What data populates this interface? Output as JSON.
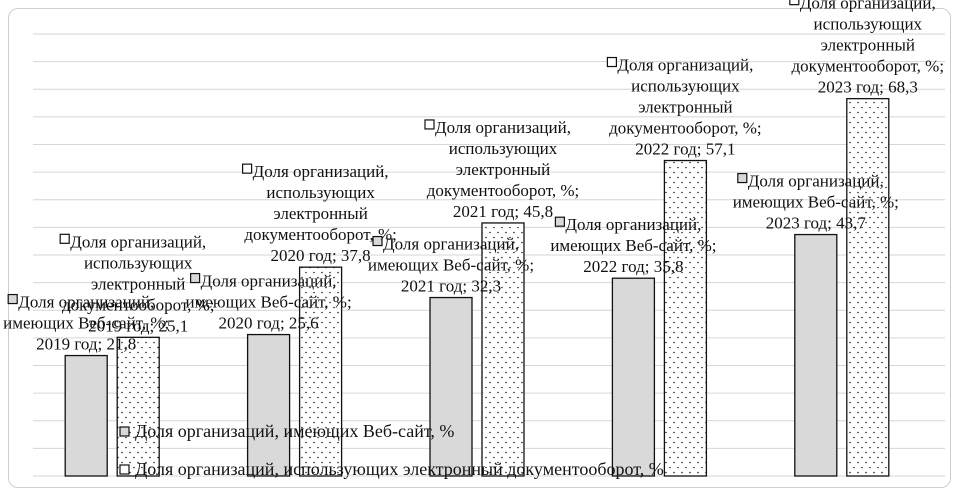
{
  "chart_data": {
    "type": "bar",
    "categories": [
      "2019 год",
      "2020 год",
      "2021 год",
      "2022 год",
      "2023 год"
    ],
    "series": [
      {
        "name": "Доля организаций, имеющих Веб-сайт, %",
        "values": [
          21.8,
          25.6,
          32.3,
          35.8,
          43.7
        ],
        "fill": "#d9d9d9",
        "pattern": "solid",
        "data_labels": [
          "Доля организаций, имеющих Веб-сайт, %; 2019 год; 21,8",
          "Доля организаций, имеющих Веб-сайт, %; 2020 год; 25,6",
          "Доля организаций, имеющих Веб-сайт, %; 2021 год; 32,3",
          "Доля организаций, имеющих Веб-сайт, %; 2022 год; 35,8",
          "Доля организаций, имеющих Веб-сайт, %; 2023 год; 43,7"
        ]
      },
      {
        "name": "Доля организаций, использующих электронный документооборот, %",
        "values": [
          25.1,
          37.8,
          45.8,
          57.1,
          68.3
        ],
        "fill": "#ffffff",
        "pattern": "dots",
        "data_labels": [
          "Доля организаций, использующих электронный документооборот, %; 2019 год; 25,1",
          "Доля организаций, использующих электронный документооборот, %; 2020 год; 37,8",
          "Доля организаций, использующих электронный документооборот, %; 2021 год; 45,8",
          "Доля организаций, использующих электронный документооборот, %; 2022 год; 57,1",
          "Доля организаций, использующих электронный документооборот, %; 2023 год; 68,3"
        ]
      }
    ],
    "ylim": [
      0,
      80
    ],
    "grid": true,
    "legend_position": "bottom",
    "title": "",
    "xlabel": "",
    "ylabel": ""
  }
}
